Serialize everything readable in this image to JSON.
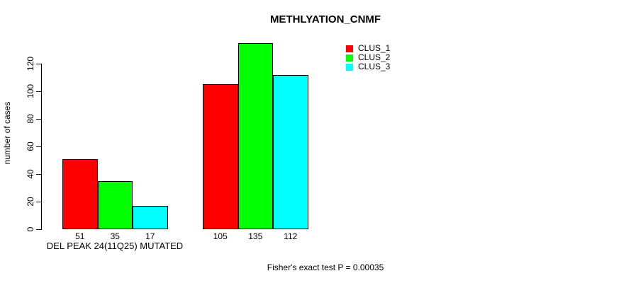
{
  "chart_data": {
    "type": "bar",
    "title": "METHLYATION_CNMF",
    "ylabel": "number of cases",
    "xlabel": "DEL PEAK 24(11Q25) MUTATED",
    "annotation": "Fisher's exact test P = 0.00035",
    "group_labels": [
      "DEL PEAK 24(11Q25) MUTATED",
      ""
    ],
    "series": [
      {
        "name": "CLUS_1",
        "color": "#ff0000",
        "values": [
          51,
          105
        ]
      },
      {
        "name": "CLUS_2",
        "color": "#00ff00",
        "values": [
          35,
          135
        ]
      },
      {
        "name": "CLUS_3",
        "color": "#00ffff",
        "values": [
          17,
          112
        ]
      }
    ],
    "bar_value_labels": [
      [
        51,
        35,
        17
      ],
      [
        105,
        135,
        112
      ]
    ],
    "y_ticks": [
      0,
      20,
      40,
      60,
      80,
      100,
      120
    ],
    "ylim": [
      0,
      140
    ],
    "grid": false,
    "legend_position": "top-right",
    "colors": {
      "background": "#ffffff",
      "bar_border": "#000000",
      "text": "#000000"
    }
  }
}
